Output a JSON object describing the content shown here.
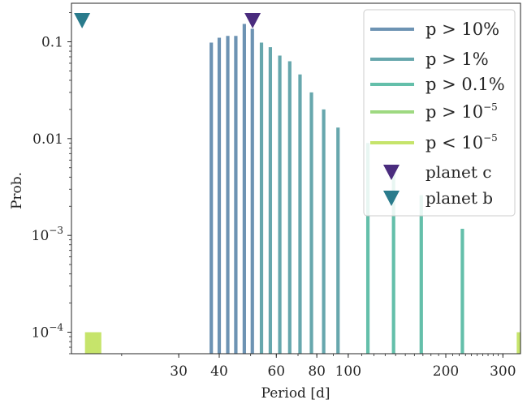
{
  "chart_data": {
    "type": "bar",
    "title": "",
    "xlabel": "Period [d]",
    "ylabel": "Prob.",
    "xscale": "log",
    "yscale": "log",
    "xlim": [
      14,
      340
    ],
    "ylim": [
      6e-05,
      0.25
    ],
    "grid": false,
    "legend_position": "top-right",
    "x_ticks": [
      {
        "value": 30,
        "label": "30"
      },
      {
        "value": 40,
        "label": "40"
      },
      {
        "value": 60,
        "label": "60"
      },
      {
        "value": 80,
        "label": "80"
      },
      {
        "value": 100,
        "label": "100"
      },
      {
        "value": 200,
        "label": "200"
      },
      {
        "value": 300,
        "label": "300"
      }
    ],
    "y_ticks": [
      {
        "value": 0.1,
        "label": "0.1"
      },
      {
        "value": 0.01,
        "label": "0.01"
      },
      {
        "value": 0.001,
        "label_base": "10",
        "label_exp": "−3"
      },
      {
        "value": 0.0001,
        "label_base": "10",
        "label_exp": "−4"
      }
    ],
    "series": [
      {
        "legend_label": "p > 10%",
        "legend_main": "p > 10%",
        "color": "#6d93b3",
        "x": [
          37.8,
          40.0,
          42.5,
          45.0,
          47.8,
          50.6
        ],
        "y": [
          0.098,
          0.11,
          0.115,
          0.115,
          0.153,
          0.136
        ]
      },
      {
        "legend_label": "p > 1%",
        "legend_main": "p > 1%",
        "color": "#67a7ad",
        "x": [
          54.0,
          57.5,
          61.5,
          66.0,
          71.0,
          77.0,
          84.0,
          93.0
        ],
        "y": [
          0.098,
          0.088,
          0.072,
          0.063,
          0.046,
          0.03,
          0.02,
          0.013
        ]
      },
      {
        "legend_label": "p > 0.1%",
        "legend_main": "p > 0.1%",
        "color": "#64bfaa",
        "x": [
          115,
          138,
          168,
          225
        ],
        "y": [
          0.009,
          0.005,
          0.0026,
          0.00117
        ]
      },
      {
        "legend_label": "p > 10^-5",
        "legend_base": "p > 10",
        "legend_exp": "−5",
        "color": "#9ed981",
        "x": [],
        "y": []
      },
      {
        "legend_label": "p < 10^-5",
        "legend_base": "p < 10",
        "legend_exp": "−5",
        "color": "#c6e46b",
        "x": [
          15.6,
          15.9,
          16.2,
          16.5,
          16.8,
          17.1,
          335
        ],
        "y": [
          0.0001,
          0.0001,
          0.0001,
          0.0001,
          0.0001,
          0.0001,
          0.0001
        ]
      }
    ],
    "markers": [
      {
        "name": "planet c",
        "x": 50.7,
        "color": "#4a2c7e"
      },
      {
        "name": "planet b",
        "x": 15.1,
        "color": "#2a7b8c"
      }
    ]
  }
}
